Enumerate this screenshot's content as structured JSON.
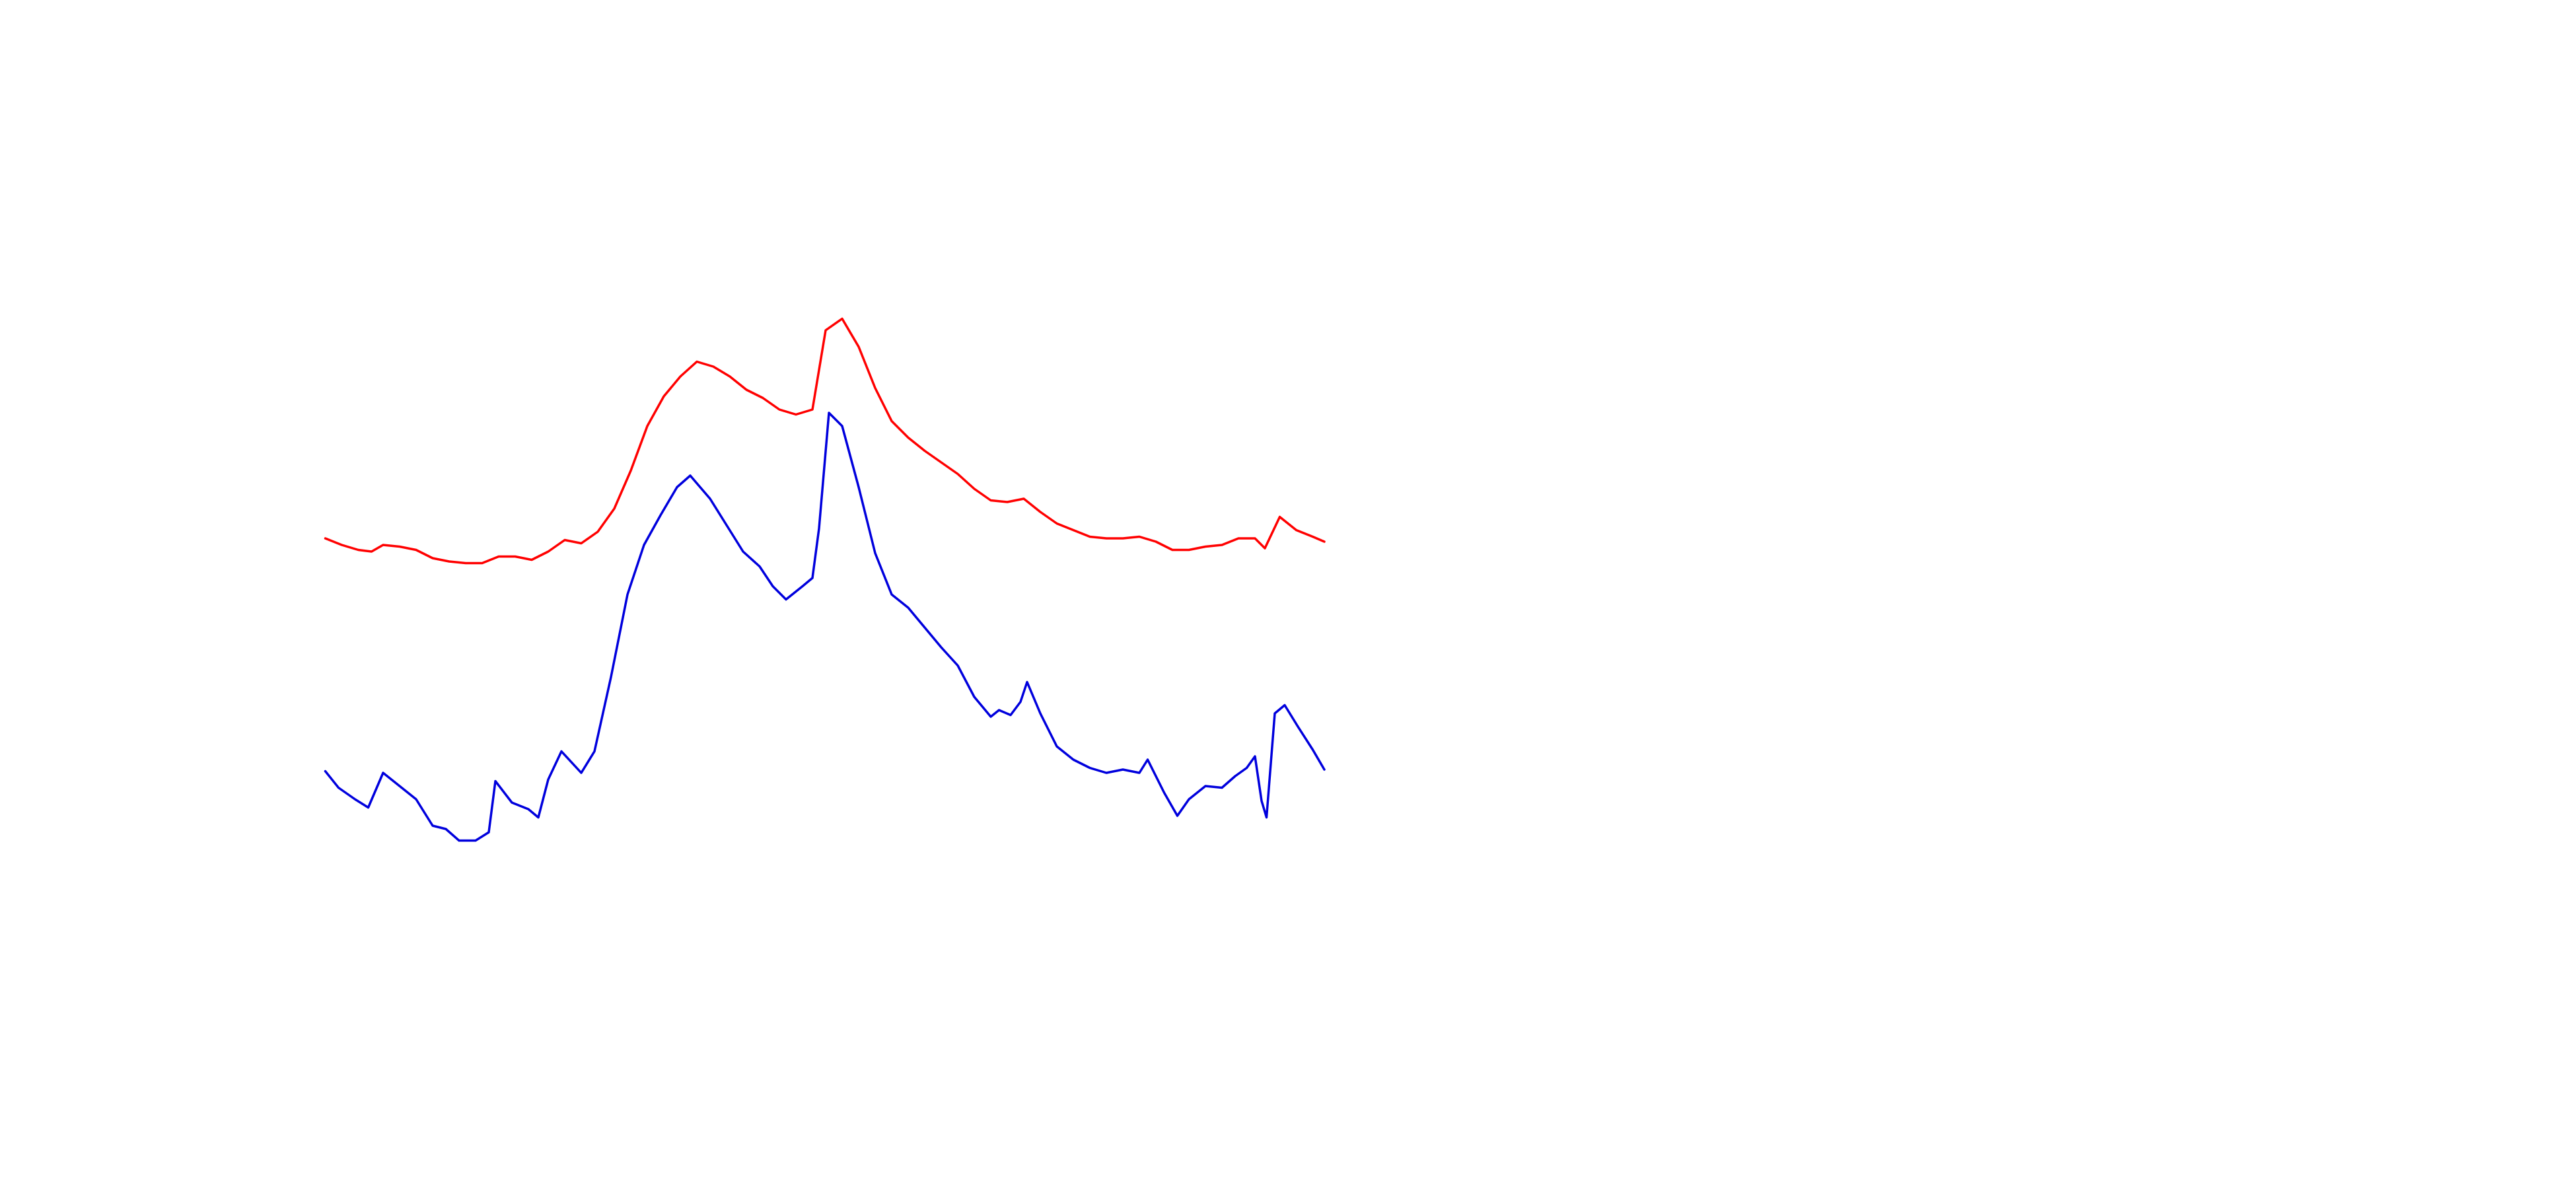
{
  "chart_data": {
    "type": "line",
    "xlim": [
      197,
      802
    ],
    "ylim": [
      0,
      400
    ],
    "grid": false,
    "series": [
      {
        "color": "#ff0000",
        "x": [
          197,
          207,
          217,
          225,
          232,
          242,
          252,
          262,
          272,
          282,
          292,
          302,
          312,
          322,
          332,
          342,
          352,
          362,
          372,
          382,
          392,
          402,
          412,
          422,
          432,
          442,
          452,
          462,
          472,
          482,
          492,
          500,
          510,
          520,
          530,
          540,
          550,
          560,
          570,
          580,
          590,
          600,
          610,
          620,
          630,
          640,
          650,
          660,
          670,
          680,
          690,
          700,
          710,
          720,
          730,
          740,
          750,
          760,
          766,
          775,
          785,
          795,
          802
        ],
        "values": [
          234,
          230,
          227,
          226,
          230,
          229,
          227,
          222,
          220,
          219,
          219,
          223,
          223,
          221,
          226,
          233,
          231,
          238,
          252,
          275,
          302,
          320,
          332,
          341,
          338,
          332,
          324,
          319,
          312,
          309,
          312,
          360,
          367,
          350,
          325,
          305,
          295,
          287,
          280,
          273,
          264,
          257,
          256,
          258,
          250,
          243,
          239,
          235,
          234,
          234,
          235,
          232,
          227,
          227,
          229,
          230,
          234,
          234,
          228,
          247,
          239,
          235,
          232
        ]
      },
      {
        "color": "#0000dd",
        "x": [
          197,
          205,
          215,
          223,
          232,
          242,
          252,
          262,
          270,
          278,
          288,
          296,
          300,
          310,
          320,
          326,
          332,
          340,
          352,
          360,
          370,
          380,
          390,
          400,
          410,
          418,
          430,
          440,
          450,
          460,
          468,
          476,
          486,
          492,
          496,
          502,
          510,
          520,
          530,
          540,
          550,
          560,
          570,
          580,
          590,
          600,
          605,
          612,
          618,
          622,
          630,
          640,
          650,
          660,
          670,
          680,
          690,
          695,
          705,
          713,
          720,
          730,
          740,
          748,
          755,
          760,
          764,
          767,
          772,
          778,
          786,
          795,
          802
        ],
        "values": [
          93,
          83,
          76,
          71,
          92,
          84,
          76,
          60,
          58,
          51,
          51,
          56,
          87,
          74,
          70,
          65,
          88,
          105,
          92,
          105,
          150,
          200,
          230,
          248,
          265,
          272,
          258,
          242,
          226,
          217,
          205,
          197,
          205,
          210,
          240,
          310,
          302,
          265,
          225,
          200,
          192,
          180,
          168,
          157,
          138,
          126,
          130,
          127,
          135,
          147,
          128,
          108,
          100,
          95,
          92,
          94,
          92,
          100,
          80,
          66,
          76,
          84,
          83,
          90,
          95,
          102,
          75,
          65,
          128,
          133,
          120,
          106,
          94
        ]
      }
    ]
  }
}
